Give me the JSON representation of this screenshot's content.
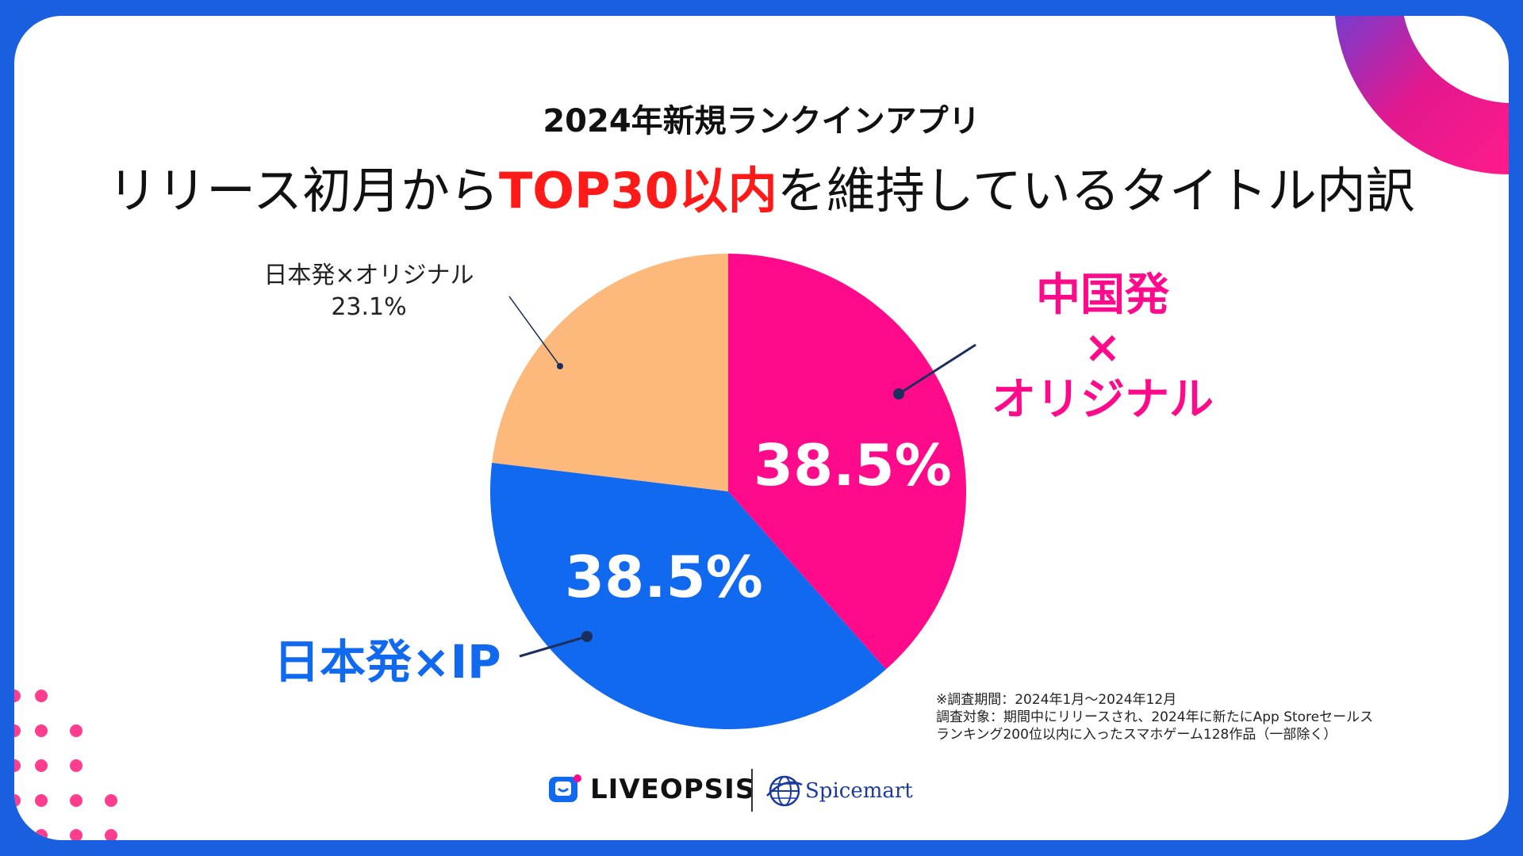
{
  "title": {
    "line1": "2024年新規ランクインアプリ",
    "line2_pre": "リリース初月から",
    "line2_highlight": "TOP30以内",
    "line2_post": "を維持しているタイトル内訳"
  },
  "chart_data": {
    "type": "pie",
    "start_angle_deg": 0,
    "direction": "clockwise",
    "slices": [
      {
        "label_lines": [
          "中国発",
          "×",
          "オリジナル"
        ],
        "value": 38.5,
        "value_label": "38.5%",
        "color": "#ff0a8a"
      },
      {
        "label_lines": [
          "日本発×IP"
        ],
        "value": 38.5,
        "value_label": "38.5%",
        "color": "#1169f0"
      },
      {
        "label_lines": [
          "日本発×オリジナル"
        ],
        "value": 23.1,
        "value_label": "23.1%",
        "color": "#fdb97c"
      }
    ]
  },
  "notes": [
    "※調査期間：2024年1月〜2024年12月",
    "調査対象：期間中にリリースされ、2024年に新たにApp Storeセールス",
    "ランキング200位以内に入ったスマホゲーム128作品（一部除く）"
  ],
  "logos": {
    "liveopsis": "LIVEOPSIS",
    "spicemart": "Spicemart"
  },
  "colors": {
    "frame": "#1a5fe0",
    "highlight": "#ff1a1a",
    "pink": "#ff0a8a",
    "blue": "#1169f0",
    "orange": "#fdb97c",
    "leader": "#1b2e5e"
  }
}
